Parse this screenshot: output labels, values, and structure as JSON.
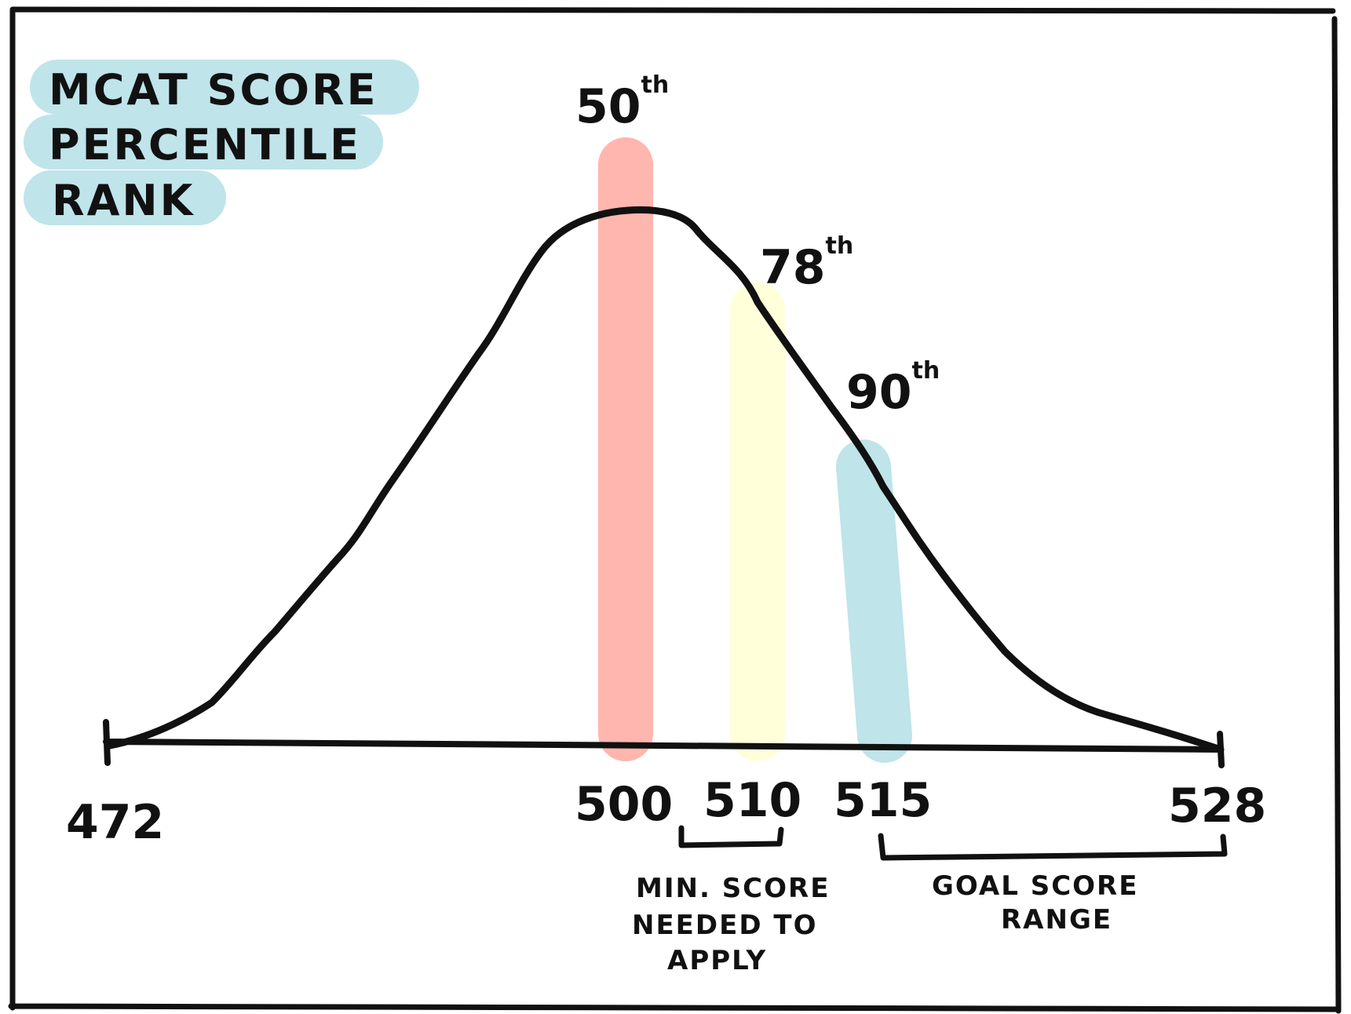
{
  "title": {
    "lines": [
      "MCAT SCORE",
      "PERCENTILE",
      "RANK"
    ],
    "highlight_color": "#bfe4ea"
  },
  "axis": {
    "min": 472,
    "max": 528,
    "tick_labels": [
      "472",
      "500",
      "510",
      "515",
      "528"
    ]
  },
  "percentiles": [
    {
      "score": 500,
      "label": "50",
      "suffix": "th",
      "color": "#ffb6ae"
    },
    {
      "score": 510,
      "label": "78",
      "suffix": "th",
      "color": "#ffffd9"
    },
    {
      "score": 515,
      "label": "90",
      "suffix": "th",
      "color": "#bfe4ea"
    }
  ],
  "annotations": {
    "min_score": [
      "MIN. SCORE",
      "NEEDED TO",
      "APPLY"
    ],
    "goal_range": [
      "GOAL SCORE",
      "RANGE"
    ]
  },
  "colors": {
    "ink": "#111111",
    "background": "#ffffff"
  }
}
